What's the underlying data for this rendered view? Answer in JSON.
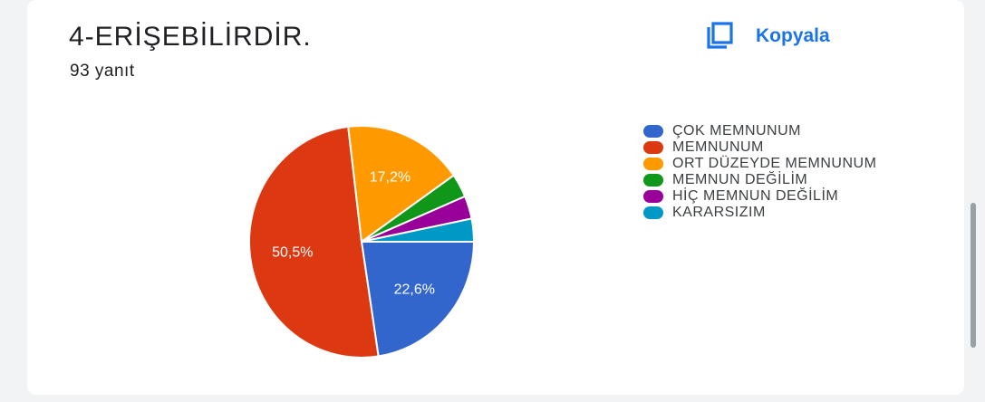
{
  "header": {
    "title": "4-ERİŞEBİLİRDİR.",
    "responses": "93 yanıt",
    "copy_label": "Kopyala",
    "copy_icon": "copy-icon"
  },
  "chart_data": {
    "type": "pie",
    "title": "4-ERİŞEBİLİRDİR.",
    "legend_position": "right",
    "start_angle_deg": 0,
    "direction": "clockwise from 3 o'clock",
    "slices": [
      {
        "label": "ÇOK MEMNUNUM",
        "value": 22.6,
        "display": "22,6%",
        "color": "#3366cc"
      },
      {
        "label": "MEMNUNUM",
        "value": 50.5,
        "display": "50,5%",
        "color": "#dc3912"
      },
      {
        "label": "ORT DÜZEYDE MEMNUNUM",
        "value": 17.2,
        "display": "17,2%",
        "color": "#ff9900"
      },
      {
        "label": "MEMNUN DEĞİLİM",
        "value": 3.3,
        "display": "",
        "color": "#109618"
      },
      {
        "label": "HİÇ MEMNUN DEĞİLİM",
        "value": 3.2,
        "display": "",
        "color": "#990099"
      },
      {
        "label": "KARARSIZIM",
        "value": 3.2,
        "display": "",
        "color": "#0099c6"
      }
    ]
  }
}
